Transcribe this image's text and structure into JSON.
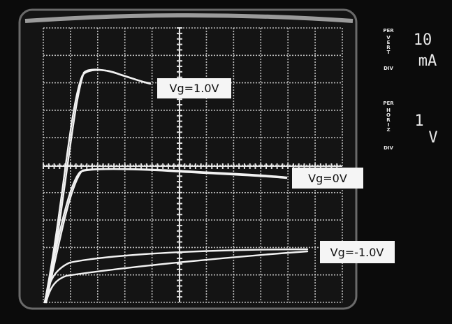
{
  "scale": {
    "vertical": {
      "per": "PER",
      "axis": "VERT",
      "div": "DIV",
      "value": "10",
      "unit": "mA"
    },
    "horizontal": {
      "per": "PER",
      "axis": "HORIZ",
      "div": "DIV",
      "value": "1",
      "unit": "V"
    }
  },
  "curve_labels": [
    "Vg=1.0V",
    "Vg=0V",
    "Vg=-1.0V"
  ]
}
